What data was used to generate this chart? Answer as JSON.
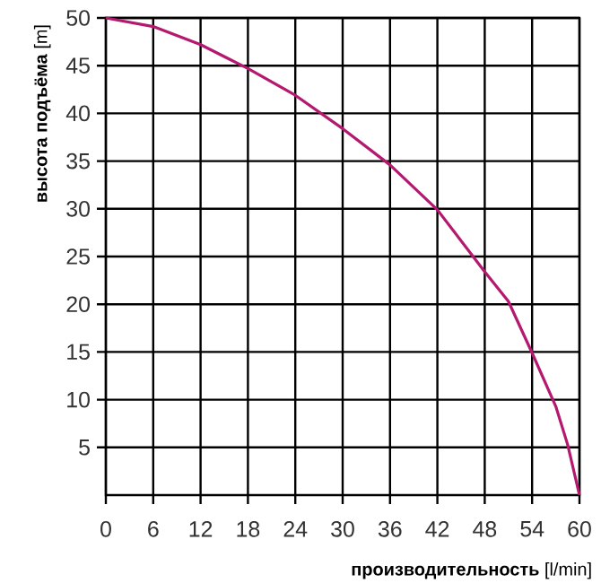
{
  "chart_data": {
    "type": "line",
    "xlabel": "**производительность** [l/min]",
    "ylabel": "**высота подъёма** [m]",
    "x": [
      0,
      6,
      12,
      18,
      24,
      30,
      36,
      42,
      48,
      51,
      54,
      57,
      58.5,
      60
    ],
    "series": [
      {
        "color": "#b5186f",
        "values": [
          50,
          49.1,
          47.2,
          44.7,
          41.9,
          38.4,
          34.6,
          29.9,
          23.4,
          20.3,
          14.9,
          9.3,
          5.3,
          0
        ]
      }
    ],
    "xlim": [
      0,
      60
    ],
    "xticks": [
      0,
      6,
      12,
      18,
      24,
      30,
      36,
      42,
      48,
      54,
      60
    ],
    "ylim": [
      0,
      50
    ],
    "yticks": [
      5,
      10,
      15,
      20,
      25,
      30,
      35,
      40,
      45,
      50
    ],
    "grid": true,
    "marker": "none",
    "line_style": "solid"
  }
}
